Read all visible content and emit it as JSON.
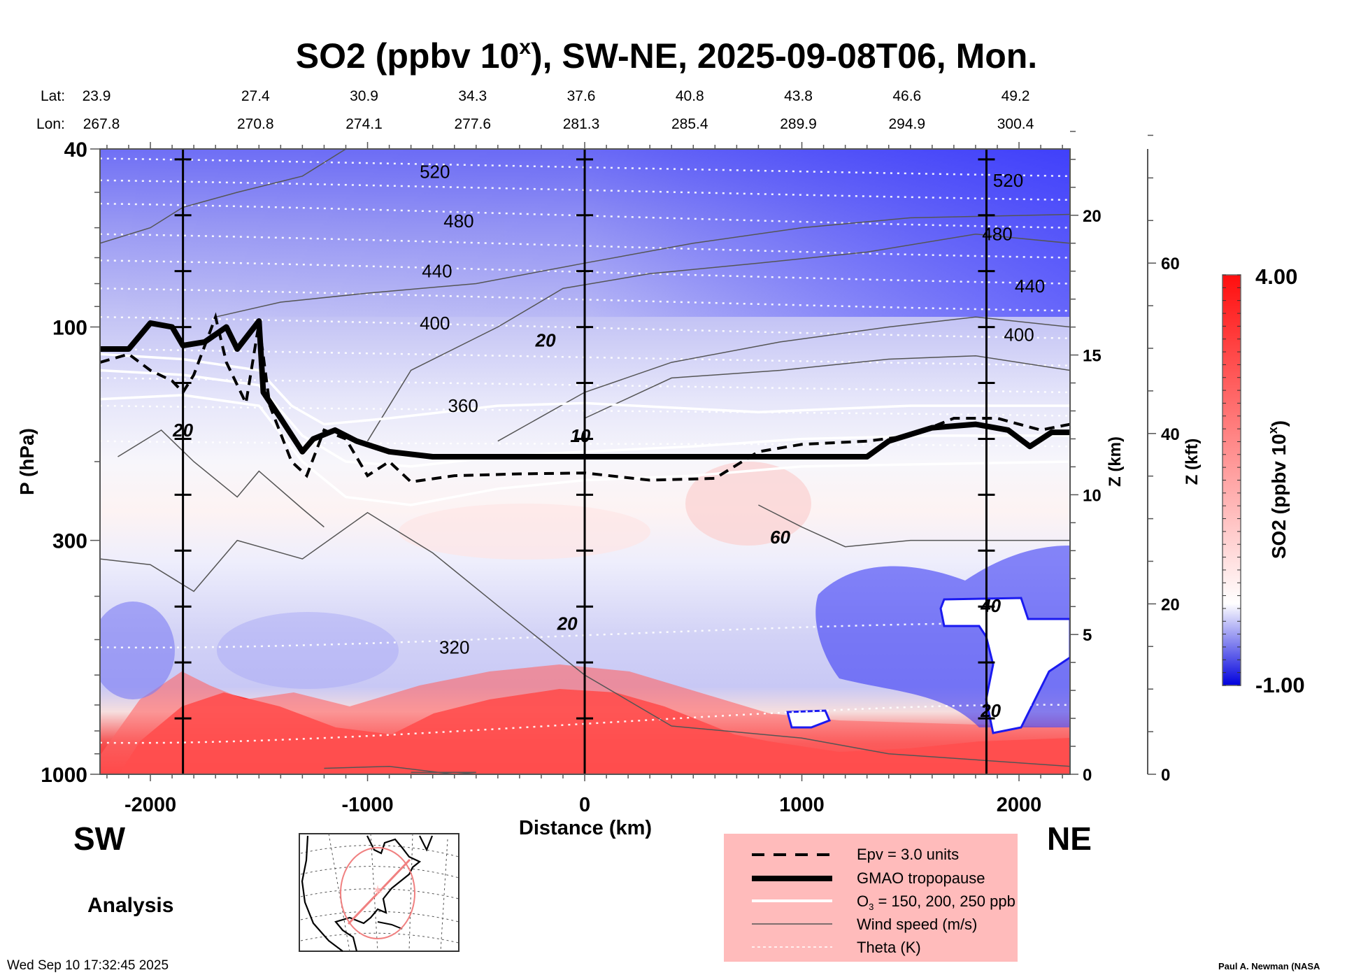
{
  "chart_data": {
    "type": "heatmap",
    "title": "SO2 (ppbv 10",
    "title_superscript": "x",
    "title_rest": "), SW-NE, 2025-09-08T06, Mon.",
    "xlabel": "Distance (km)",
    "ylabel": "P (hPa)",
    "xlim": [
      -2232,
      2235
    ],
    "ylim": [
      1000,
      40
    ],
    "yscale": "log",
    "x_ticks": [
      -2000,
      -1000,
      0,
      1000,
      2000
    ],
    "x_tick_labels": [
      "-2000",
      "-1000",
      "0",
      "1000",
      "2000"
    ],
    "y_ticks": [
      40,
      100,
      300,
      1000
    ],
    "y_tick_labels": [
      "40",
      "100",
      "300",
      "1000"
    ],
    "lat_label": "Lat:",
    "lon_label": "Lon:",
    "lat_values": [
      "23.9",
      "27.4",
      "30.9",
      "34.3",
      "37.6",
      "40.8",
      "43.8",
      "46.6",
      "49.2"
    ],
    "lon_values": [
      "267.8",
      "270.8",
      "274.1",
      "277.6",
      "281.3",
      "285.4",
      "289.9",
      "294.9",
      "300.4"
    ],
    "lat_lon_distances_km": [
      -2000,
      -1500,
      -1000,
      -500,
      0,
      500,
      1000,
      1500,
      2000
    ],
    "vertical_marker_lines_km": [
      -1850,
      0,
      1850
    ],
    "z_km_axis": {
      "label": "Z (km)",
      "ticks": [
        0,
        5,
        10,
        15,
        20
      ]
    },
    "z_kft_axis": {
      "label": "Z (kft)",
      "ticks": [
        0,
        20,
        40,
        60
      ]
    },
    "colorbar": {
      "label": "SO2 (ppbv 10",
      "label_sup": "x",
      "label_end": ")",
      "min": -1.0,
      "max": 4.0,
      "min_label": "-1.00",
      "max_label": "4.00",
      "colors": {
        "low": "#0000ff",
        "mid": "#ffffff",
        "high": "#ff0000"
      }
    },
    "theta_labels": [
      {
        "value": "520",
        "x_km": -690,
        "p": 45
      },
      {
        "value": "480",
        "x_km": -580,
        "p": 58
      },
      {
        "value": "440",
        "x_km": -680,
        "p": 75
      },
      {
        "value": "400",
        "x_km": -690,
        "p": 98
      },
      {
        "value": "360",
        "x_km": -560,
        "p": 150
      },
      {
        "value": "320",
        "x_km": -600,
        "p": 520
      },
      {
        "value": "520",
        "x_km": 1950,
        "p": 47
      },
      {
        "value": "480",
        "x_km": 1900,
        "p": 62
      },
      {
        "value": "440",
        "x_km": 2050,
        "p": 81
      },
      {
        "value": "400",
        "x_km": 2000,
        "p": 104
      }
    ],
    "wind_labels": [
      {
        "value": "20",
        "x_km": -1850,
        "p": 170
      },
      {
        "value": "20",
        "x_km": -180,
        "p": 107
      },
      {
        "value": "10",
        "x_km": -20,
        "p": 175
      },
      {
        "value": "60",
        "x_km": 900,
        "p": 295
      },
      {
        "value": "20",
        "x_km": -80,
        "p": 460
      },
      {
        "value": "40",
        "x_km": 1870,
        "p": 420
      },
      {
        "value": "20",
        "x_km": 1870,
        "p": 720
      }
    ],
    "tropopause_p": [
      [
        -2232,
        112
      ],
      [
        -2100,
        112
      ],
      [
        -2000,
        98
      ],
      [
        -1900,
        100
      ],
      [
        -1850,
        110
      ],
      [
        -1750,
        108
      ],
      [
        -1650,
        100
      ],
      [
        -1600,
        112
      ],
      [
        -1500,
        97
      ],
      [
        -1480,
        140
      ],
      [
        -1400,
        160
      ],
      [
        -1300,
        190
      ],
      [
        -1250,
        178
      ],
      [
        -1150,
        170
      ],
      [
        -1050,
        180
      ],
      [
        -900,
        190
      ],
      [
        -700,
        195
      ],
      [
        -400,
        195
      ],
      [
        0,
        195
      ],
      [
        400,
        195
      ],
      [
        800,
        195
      ],
      [
        1100,
        195
      ],
      [
        1300,
        195
      ],
      [
        1400,
        180
      ],
      [
        1600,
        168
      ],
      [
        1800,
        165
      ],
      [
        1950,
        170
      ],
      [
        2050,
        185
      ],
      [
        2150,
        172
      ],
      [
        2235,
        172
      ]
    ],
    "epv_p": [
      [
        -2232,
        120
      ],
      [
        -2100,
        115
      ],
      [
        -2000,
        125
      ],
      [
        -1900,
        132
      ],
      [
        -1850,
        140
      ],
      [
        -1800,
        128
      ],
      [
        -1700,
        95
      ],
      [
        -1650,
        120
      ],
      [
        -1560,
        148
      ],
      [
        -1500,
        98
      ],
      [
        -1450,
        150
      ],
      [
        -1350,
        200
      ],
      [
        -1280,
        215
      ],
      [
        -1200,
        170
      ],
      [
        -1100,
        178
      ],
      [
        -1000,
        215
      ],
      [
        -900,
        200
      ],
      [
        -800,
        222
      ],
      [
        -600,
        215
      ],
      [
        -300,
        213
      ],
      [
        0,
        212
      ],
      [
        300,
        220
      ],
      [
        600,
        218
      ],
      [
        800,
        190
      ],
      [
        1000,
        183
      ],
      [
        1300,
        180
      ],
      [
        1500,
        175
      ],
      [
        1700,
        160
      ],
      [
        1900,
        160
      ],
      [
        2100,
        170
      ],
      [
        2235,
        165
      ]
    ],
    "legend": {
      "entries": [
        {
          "label": "Epv = 3.0 units",
          "style": "dashed-black"
        },
        {
          "label": "GMAO tropopause",
          "style": "thick-black"
        },
        {
          "label": "O",
          "sub": "3",
          "label_rest": " = 150, 200, 250 ppb",
          "style": "white"
        },
        {
          "label": "Wind speed (m/s)",
          "style": "thin-gray"
        },
        {
          "label": "Theta (K)",
          "style": "dotted-white"
        }
      ],
      "background": "#ffbbbb"
    },
    "sw_label": "SW",
    "ne_label": "NE",
    "analysis_label": "Analysis"
  },
  "footer": {
    "timestamp": "Wed Sep 10 17:32:45 2025",
    "credit": "Paul A. Newman (NASA"
  },
  "inset_map": {
    "description": "North America locator map with SW-NE cross-section line",
    "line_color": "#f08080"
  }
}
